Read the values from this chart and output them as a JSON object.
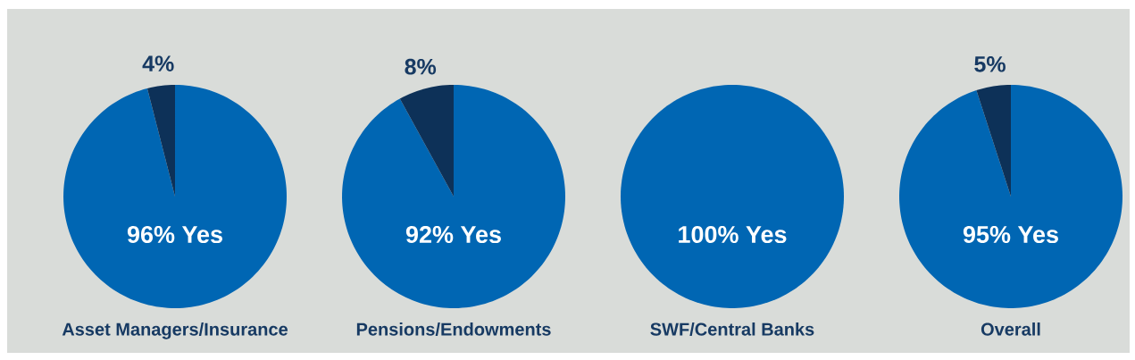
{
  "chart_data": [
    {
      "type": "pie",
      "title": "Asset Managers/Insurance",
      "categories": [
        null,
        null
      ],
      "values": [
        96,
        4
      ],
      "colors": [
        "#0066b3",
        "#0d3158"
      ],
      "value_labels": [
        "96% Yes",
        "4%"
      ]
    },
    {
      "type": "pie",
      "title": "Pensions/Endowments",
      "categories": [
        null,
        null
      ],
      "values": [
        92,
        8
      ],
      "colors": [
        "#0066b3",
        "#0d3158"
      ],
      "value_labels": [
        "92% Yes",
        "8%"
      ]
    },
    {
      "type": "pie",
      "title": "SWF/Central Banks",
      "categories": [
        null
      ],
      "values": [
        100
      ],
      "colors": [
        "#0066b3"
      ],
      "value_labels": [
        "100% Yes"
      ]
    },
    {
      "type": "pie",
      "title": "Overall",
      "categories": [
        null,
        null
      ],
      "values": [
        95,
        5
      ],
      "colors": [
        "#0066b3",
        "#0d3158"
      ],
      "value_labels": [
        "95% Yes",
        "5%"
      ]
    }
  ]
}
